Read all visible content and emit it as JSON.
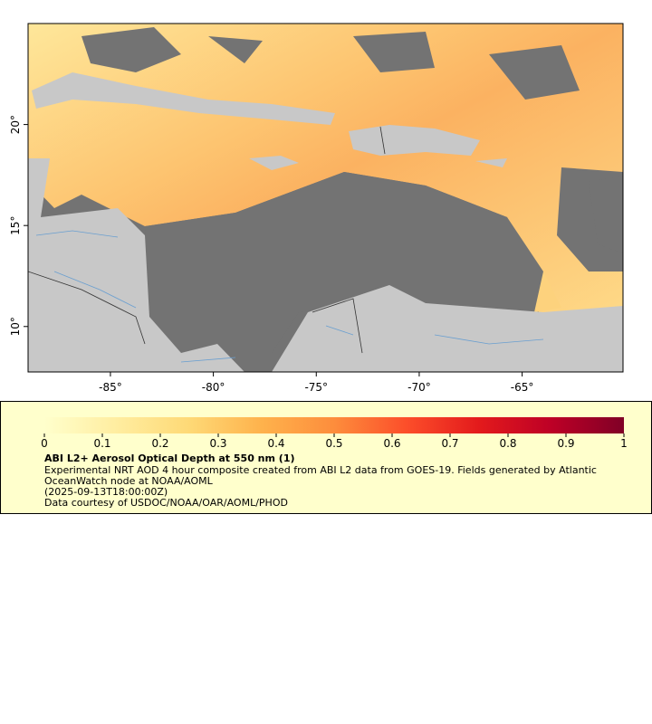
{
  "map": {
    "xlim": [
      -89,
      -60.1
    ],
    "ylim": [
      7.75,
      25
    ],
    "xticks": [
      {
        "value": -85,
        "label": "-85°"
      },
      {
        "value": -80,
        "label": "-80°"
      },
      {
        "value": -75,
        "label": "-75°"
      },
      {
        "value": -70,
        "label": "-70°"
      },
      {
        "value": -65,
        "label": "-65°"
      }
    ],
    "yticks": [
      {
        "value": 10,
        "label": "10°"
      },
      {
        "value": 15,
        "label": "15°"
      },
      {
        "value": 20,
        "label": "20°"
      }
    ]
  },
  "colorbar": {
    "lim": [
      0,
      1
    ],
    "ticks": [
      0,
      0.1,
      0.2,
      0.3,
      0.4,
      0.5,
      0.6,
      0.7,
      0.8,
      0.9,
      1
    ],
    "colors": [
      "#ffffcc",
      "#ffeda0",
      "#fed976",
      "#feb24c",
      "#fd8d3c",
      "#fc4e2a",
      "#e31a1c",
      "#bd0026",
      "#800026"
    ]
  },
  "legend": {
    "title": "ABI L2+ Aerosol Optical Depth at 550 nm (1)",
    "description": "Experimental NRT AOD 4 hour composite created from ABI L2 data from GOES-19. Fields generated by Atlantic OceanWatch node at NOAA/AOML",
    "time": "(2025-09-13T18:00:00Z)",
    "credit": "Data courtesy of USDOC/NOAA/OAR/AOML/PHOD"
  }
}
